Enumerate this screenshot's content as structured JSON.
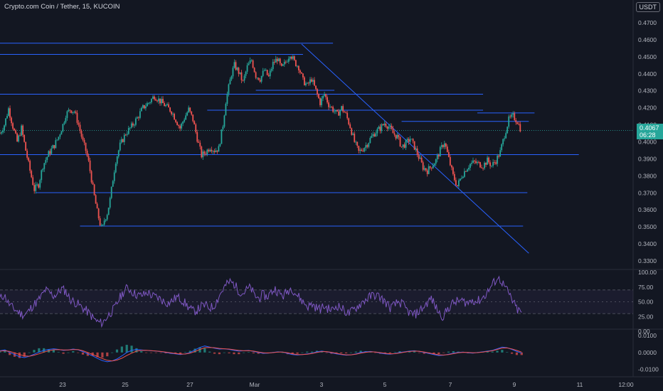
{
  "header": {
    "title": "Crypto.com Coin / Tether, 15, KUCOIN",
    "currency": "USDT"
  },
  "price_badge": {
    "price": "0.4067",
    "countdown": "06:28"
  },
  "colors": {
    "background": "#131722",
    "up": "#26a69a",
    "down": "#ef5350",
    "trendline": "#2962ff",
    "rsi": "#7e57c2",
    "macd_line": "#2962ff",
    "signal_line": "#ef5350"
  },
  "chart_data": [
    {
      "type": "candlestick",
      "title": "Crypto.com Coin / Tether, 15, KUCOIN",
      "ylim": [
        0.33,
        0.475
      ],
      "y_ticks": [
        "0.4700",
        "0.4600",
        "0.4500",
        "0.4400",
        "0.4300",
        "0.4200",
        "0.4100",
        "0.4000",
        "0.3900",
        "0.3800",
        "0.3700",
        "0.3600",
        "0.3500",
        "0.3400",
        "0.3300"
      ],
      "x_ticks": [
        "23",
        "25",
        "27",
        "Mar",
        "3",
        "5",
        "7",
        "9",
        "11",
        "12:00"
      ],
      "grid": false,
      "path": [
        {
          "x": 0.0,
          "y": 0.405
        },
        {
          "x": 0.3,
          "y": 0.41
        },
        {
          "x": 0.6,
          "y": 0.4195
        },
        {
          "x": 0.9,
          "y": 0.409
        },
        {
          "x": 1.2,
          "y": 0.4
        },
        {
          "x": 1.5,
          "y": 0.408
        },
        {
          "x": 1.8,
          "y": 0.395
        },
        {
          "x": 2.1,
          "y": 0.383
        },
        {
          "x": 2.4,
          "y": 0.372
        },
        {
          "x": 2.7,
          "y": 0.375
        },
        {
          "x": 3.0,
          "y": 0.386
        },
        {
          "x": 3.4,
          "y": 0.393
        },
        {
          "x": 3.8,
          "y": 0.398
        },
        {
          "x": 4.1,
          "y": 0.403
        },
        {
          "x": 4.4,
          "y": 0.41
        },
        {
          "x": 4.6,
          "y": 0.416
        },
        {
          "x": 4.9,
          "y": 0.419
        },
        {
          "x": 5.2,
          "y": 0.418
        },
        {
          "x": 5.5,
          "y": 0.41
        },
        {
          "x": 5.8,
          "y": 0.4
        },
        {
          "x": 6.0,
          "y": 0.395
        },
        {
          "x": 6.2,
          "y": 0.388
        },
        {
          "x": 6.4,
          "y": 0.378
        },
        {
          "x": 6.6,
          "y": 0.368
        },
        {
          "x": 6.8,
          "y": 0.359
        },
        {
          "x": 7.0,
          "y": 0.352
        },
        {
          "x": 7.15,
          "y": 0.348
        },
        {
          "x": 7.3,
          "y": 0.354
        },
        {
          "x": 7.5,
          "y": 0.358
        },
        {
          "x": 7.7,
          "y": 0.366
        },
        {
          "x": 7.9,
          "y": 0.378
        },
        {
          "x": 8.1,
          "y": 0.389
        },
        {
          "x": 8.4,
          "y": 0.398
        },
        {
          "x": 8.8,
          "y": 0.405
        },
        {
          "x": 9.2,
          "y": 0.409
        },
        {
          "x": 9.6,
          "y": 0.414
        },
        {
          "x": 10.0,
          "y": 0.42
        },
        {
          "x": 10.4,
          "y": 0.423
        },
        {
          "x": 10.8,
          "y": 0.427
        },
        {
          "x": 11.2,
          "y": 0.424
        },
        {
          "x": 11.6,
          "y": 0.421
        },
        {
          "x": 12.0,
          "y": 0.418
        },
        {
          "x": 12.3,
          "y": 0.413
        },
        {
          "x": 12.6,
          "y": 0.408
        },
        {
          "x": 12.9,
          "y": 0.414
        },
        {
          "x": 13.2,
          "y": 0.419
        },
        {
          "x": 13.5,
          "y": 0.413
        },
        {
          "x": 13.8,
          "y": 0.402
        },
        {
          "x": 14.1,
          "y": 0.392
        },
        {
          "x": 14.4,
          "y": 0.394
        },
        {
          "x": 14.7,
          "y": 0.397
        },
        {
          "x": 15.0,
          "y": 0.395
        },
        {
          "x": 15.3,
          "y": 0.396
        },
        {
          "x": 15.6,
          "y": 0.41
        },
        {
          "x": 15.8,
          "y": 0.424
        },
        {
          "x": 16.0,
          "y": 0.432
        },
        {
          "x": 16.2,
          "y": 0.44
        },
        {
          "x": 16.4,
          "y": 0.445
        },
        {
          "x": 16.7,
          "y": 0.441
        },
        {
          "x": 17.0,
          "y": 0.435
        },
        {
          "x": 17.3,
          "y": 0.444
        },
        {
          "x": 17.6,
          "y": 0.448
        },
        {
          "x": 17.9,
          "y": 0.439
        },
        {
          "x": 18.2,
          "y": 0.437
        },
        {
          "x": 18.5,
          "y": 0.442
        },
        {
          "x": 18.8,
          "y": 0.438
        },
        {
          "x": 19.1,
          "y": 0.446
        },
        {
          "x": 19.4,
          "y": 0.449
        },
        {
          "x": 19.7,
          "y": 0.443
        },
        {
          "x": 20.0,
          "y": 0.447
        },
        {
          "x": 20.3,
          "y": 0.452
        },
        {
          "x": 20.6,
          "y": 0.447
        },
        {
          "x": 20.9,
          "y": 0.444
        },
        {
          "x": 21.2,
          "y": 0.436
        },
        {
          "x": 21.5,
          "y": 0.433
        },
        {
          "x": 21.8,
          "y": 0.437
        },
        {
          "x": 22.1,
          "y": 0.43
        },
        {
          "x": 22.4,
          "y": 0.423
        },
        {
          "x": 22.7,
          "y": 0.428
        },
        {
          "x": 23.0,
          "y": 0.422
        },
        {
          "x": 23.3,
          "y": 0.419
        },
        {
          "x": 23.6,
          "y": 0.416
        },
        {
          "x": 23.9,
          "y": 0.42
        },
        {
          "x": 24.2,
          "y": 0.416
        },
        {
          "x": 24.5,
          "y": 0.409
        },
        {
          "x": 24.8,
          "y": 0.4
        },
        {
          "x": 25.1,
          "y": 0.394
        },
        {
          "x": 25.4,
          "y": 0.396
        },
        {
          "x": 25.7,
          "y": 0.399
        },
        {
          "x": 26.0,
          "y": 0.403
        },
        {
          "x": 26.3,
          "y": 0.406
        },
        {
          "x": 26.6,
          "y": 0.408
        },
        {
          "x": 26.9,
          "y": 0.411
        },
        {
          "x": 27.2,
          "y": 0.409
        },
        {
          "x": 27.5,
          "y": 0.405
        },
        {
          "x": 27.8,
          "y": 0.403
        },
        {
          "x": 28.1,
          "y": 0.397
        },
        {
          "x": 28.4,
          "y": 0.399
        },
        {
          "x": 28.7,
          "y": 0.402
        },
        {
          "x": 29.0,
          "y": 0.397
        },
        {
          "x": 29.3,
          "y": 0.391
        },
        {
          "x": 29.6,
          "y": 0.385
        },
        {
          "x": 29.9,
          "y": 0.383
        },
        {
          "x": 30.2,
          "y": 0.386
        },
        {
          "x": 30.5,
          "y": 0.389
        },
        {
          "x": 30.8,
          "y": 0.395
        },
        {
          "x": 31.1,
          "y": 0.4
        },
        {
          "x": 31.4,
          "y": 0.39
        },
        {
          "x": 31.7,
          "y": 0.38
        },
        {
          "x": 32.0,
          "y": 0.374
        },
        {
          "x": 32.3,
          "y": 0.38
        },
        {
          "x": 32.6,
          "y": 0.384
        },
        {
          "x": 32.9,
          "y": 0.387
        },
        {
          "x": 33.2,
          "y": 0.388
        },
        {
          "x": 33.5,
          "y": 0.387
        },
        {
          "x": 33.8,
          "y": 0.386
        },
        {
          "x": 34.1,
          "y": 0.389
        },
        {
          "x": 34.4,
          "y": 0.386
        },
        {
          "x": 34.7,
          "y": 0.389
        },
        {
          "x": 35.0,
          "y": 0.394
        },
        {
          "x": 35.3,
          "y": 0.404
        },
        {
          "x": 35.6,
          "y": 0.413
        },
        {
          "x": 35.9,
          "y": 0.415
        },
        {
          "x": 36.2,
          "y": 0.412
        },
        {
          "x": 36.5,
          "y": 0.406
        }
      ],
      "horizontal_levels": [
        {
          "y": 0.458,
          "x_start": 0.0,
          "x_end": 23.3
        },
        {
          "y": 0.4514,
          "x_start": 0.0,
          "x_end": 21.2
        },
        {
          "y": 0.428,
          "x_start": 0.0,
          "x_end": 33.8
        },
        {
          "y": 0.4303,
          "x_start": 17.9,
          "x_end": 23.4
        },
        {
          "y": 0.4186,
          "x_start": 14.5,
          "x_end": 33.8
        },
        {
          "y": 0.417,
          "x_start": 33.4,
          "x_end": 37.4
        },
        {
          "y": 0.412,
          "x_start": 28.1,
          "x_end": 37.0
        },
        {
          "y": 0.3925,
          "x_start": 0.0,
          "x_end": 40.5
        },
        {
          "y": 0.3701,
          "x_start": 2.5,
          "x_end": 36.9
        },
        {
          "y": 0.3505,
          "x_start": 5.6,
          "x_end": 36.6
        }
      ],
      "trendline": {
        "x1": 21.1,
        "y1": 0.4575,
        "x2": 37.0,
        "y2": 0.3345
      },
      "last_price": 0.4067
    },
    {
      "type": "line",
      "indicator": "RSI",
      "ylim": [
        0,
        100
      ],
      "y_ticks": [
        "100.00",
        "75.00",
        "50.00",
        "25.00",
        "0.00"
      ],
      "bands": [
        70,
        30
      ],
      "values": [
        55,
        62,
        48,
        40,
        35,
        30,
        28,
        34,
        44,
        50,
        58,
        70,
        66,
        60,
        64,
        72,
        68,
        55,
        50,
        46,
        40,
        35,
        28,
        20,
        15,
        14,
        24,
        32,
        40,
        55,
        66,
        74,
        68,
        63,
        60,
        62,
        66,
        60,
        58,
        55,
        50,
        48,
        52,
        58,
        55,
        48,
        40,
        34,
        36,
        42,
        44,
        40,
        42,
        55,
        68,
        78,
        84,
        80,
        70,
        64,
        70,
        74,
        60,
        56,
        62,
        58,
        66,
        72,
        64,
        60,
        68,
        74,
        64,
        56,
        48,
        42,
        46,
        40,
        38,
        42,
        38,
        36,
        44,
        40,
        34,
        30,
        36,
        42,
        48,
        54,
        58,
        62,
        60,
        55,
        48,
        40,
        44,
        50,
        46,
        36,
        30,
        28,
        34,
        40,
        48,
        56,
        42,
        30,
        25,
        38,
        46,
        50,
        52,
        50,
        48,
        54,
        50,
        54,
        60,
        70,
        80,
        90,
        86,
        74,
        62,
        48,
        36,
        32
      ]
    },
    {
      "type": "line",
      "indicator": "MACD",
      "ylim": [
        -0.0135,
        0.0125
      ],
      "y_ticks": [
        "0.0100",
        "0.0000",
        "-0.0100"
      ],
      "macd": [
        0.001,
        0.0015,
        0.0,
        -0.0012,
        -0.0025,
        -0.003,
        -0.0022,
        -0.001,
        0.0002,
        0.0012,
        0.0018,
        0.0022,
        0.0018,
        0.0012,
        0.0015,
        0.002,
        0.0016,
        0.0005,
        -0.0008,
        -0.002,
        -0.0035,
        -0.0048,
        -0.0055,
        -0.005,
        -0.0038,
        -0.002,
        0.0,
        0.0012,
        0.0018,
        0.0015,
        0.0012,
        0.001,
        0.0008,
        0.0005,
        0.0,
        -0.0005,
        -0.0008,
        -0.0012,
        -0.0008,
        0.0,
        0.0015,
        0.003,
        0.0038,
        0.0032,
        0.0025,
        0.002,
        0.0022,
        0.0018,
        0.0012,
        0.0008,
        0.001,
        0.0012,
        0.0006,
        0.0,
        -0.0005,
        -0.0004,
        0.0,
        0.0004,
        0.0002,
        -0.0006,
        -0.0012,
        -0.0015,
        -0.0012,
        -0.0008,
        -0.0004,
        0.0004,
        0.0008,
        0.0004,
        -0.0002,
        -0.0008,
        -0.0012,
        -0.0016,
        -0.0014,
        -0.0008,
        0.0,
        0.0004,
        0.0006,
        0.0002,
        -0.0004,
        -0.0008,
        -0.001,
        -0.0006,
        0.0,
        0.0004,
        0.0008,
        0.001,
        0.0006,
        0.0,
        -0.0006,
        -0.0012,
        -0.0018,
        -0.0016,
        -0.001,
        -0.0004,
        0.0,
        0.0002,
        -0.0002,
        -0.0004,
        0.0,
        0.0004,
        0.0008,
        0.0012,
        0.0022,
        0.0032,
        0.0028,
        0.0018,
        0.0006,
        -0.0004
      ],
      "signal": [
        0.0008,
        0.001,
        0.0006,
        -0.0002,
        -0.0012,
        -0.002,
        -0.0022,
        -0.0016,
        -0.0008,
        0.0002,
        0.001,
        0.0016,
        0.0017,
        0.0015,
        0.0015,
        0.0017,
        0.0017,
        0.001,
        0.0,
        -0.0012,
        -0.0024,
        -0.0036,
        -0.0046,
        -0.005,
        -0.0045,
        -0.0034,
        -0.0018,
        -0.0004,
        0.0008,
        0.0012,
        0.0013,
        0.0011,
        0.0009,
        0.0006,
        0.0002,
        -0.0002,
        -0.0006,
        -0.0009,
        -0.0009,
        -0.0004,
        0.0006,
        0.0018,
        0.0028,
        0.003,
        0.0028,
        0.0024,
        0.0022,
        0.002,
        0.0016,
        0.0012,
        0.001,
        0.0011,
        0.0008,
        0.0003,
        -0.0002,
        -0.0003,
        -0.0001,
        0.0002,
        0.0002,
        -0.0002,
        -0.0008,
        -0.0012,
        -0.0012,
        -0.001,
        -0.0006,
        0.0,
        0.0005,
        0.0005,
        0.0001,
        -0.0005,
        -0.001,
        -0.0014,
        -0.0014,
        -0.001,
        -0.0004,
        0.0001,
        0.0004,
        0.0003,
        -0.0001,
        -0.0005,
        -0.0008,
        -0.0007,
        -0.0003,
        0.0002,
        0.0006,
        0.0008,
        0.0007,
        0.0003,
        -0.0003,
        -0.0008,
        -0.0014,
        -0.0015,
        -0.0012,
        -0.0007,
        -0.0002,
        0.0001,
        0.0,
        -0.0002,
        -0.0001,
        0.0002,
        0.0006,
        0.001,
        0.0018,
        0.0026,
        0.0027,
        0.0021,
        0.0012,
        0.0002
      ]
    }
  ]
}
